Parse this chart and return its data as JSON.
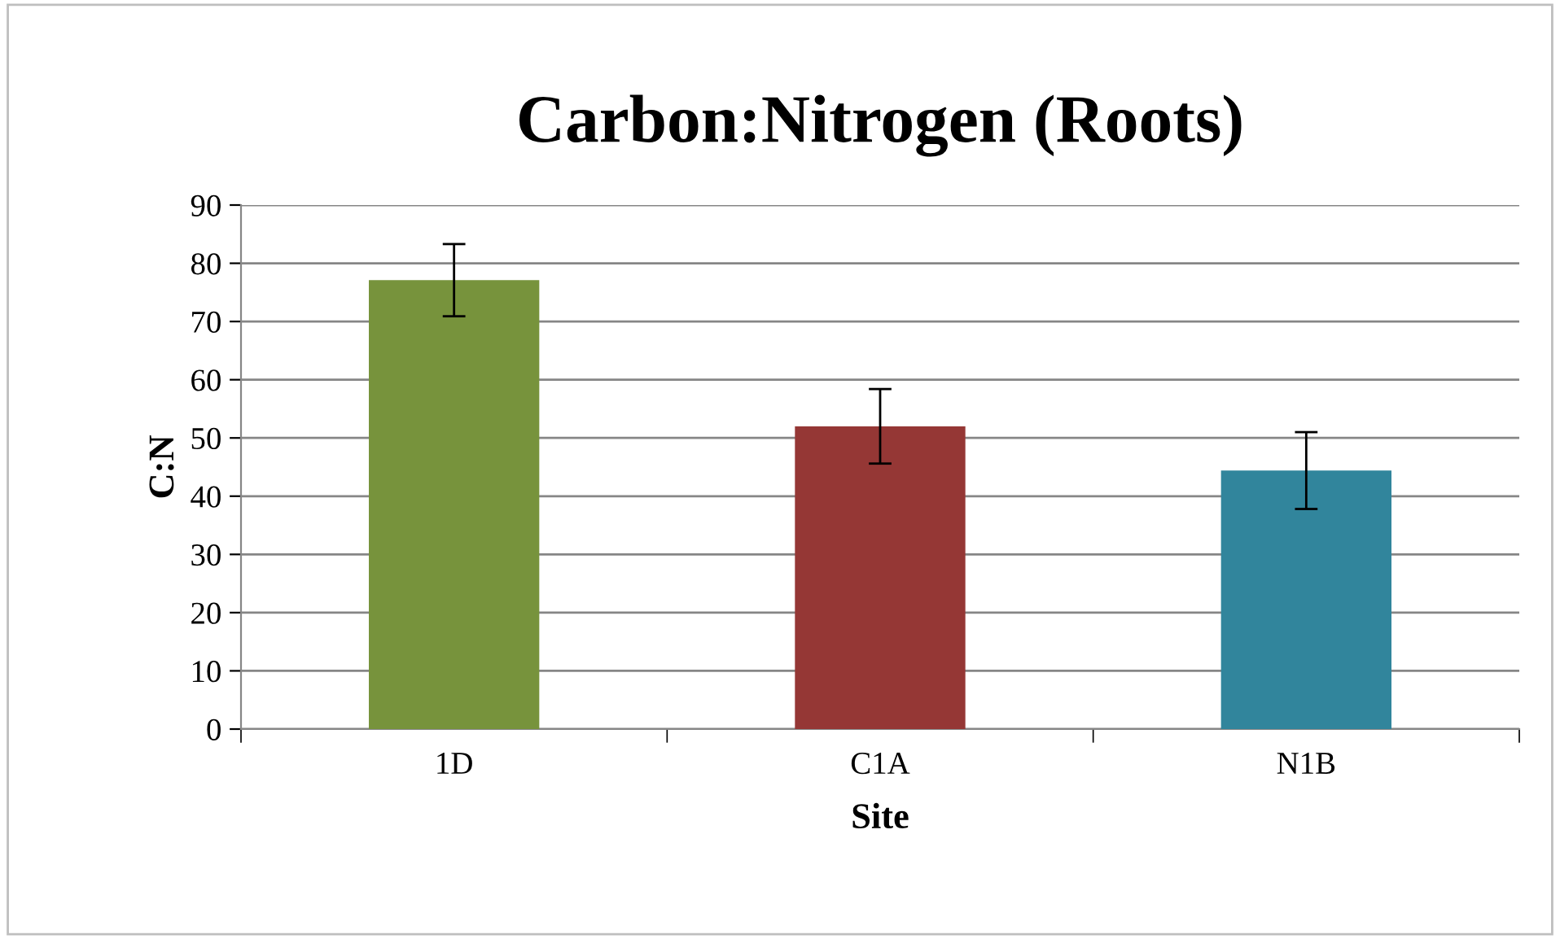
{
  "chart_data": {
    "type": "bar",
    "title": "Carbon:Nitrogen (Roots)",
    "xlabel": "Site",
    "ylabel": "C:N",
    "categories": [
      "1D",
      "C1A",
      "N1B"
    ],
    "values": [
      77.1,
      52.0,
      44.4
    ],
    "colors": [
      "#77933c",
      "#953735",
      "#31859c"
    ],
    "errors": [
      6.2,
      6.4,
      6.6
    ],
    "ylim": [
      0,
      90
    ],
    "yticks": [
      0,
      10,
      20,
      30,
      40,
      50,
      60,
      70,
      80,
      90
    ],
    "grid": "y",
    "legend": false
  }
}
